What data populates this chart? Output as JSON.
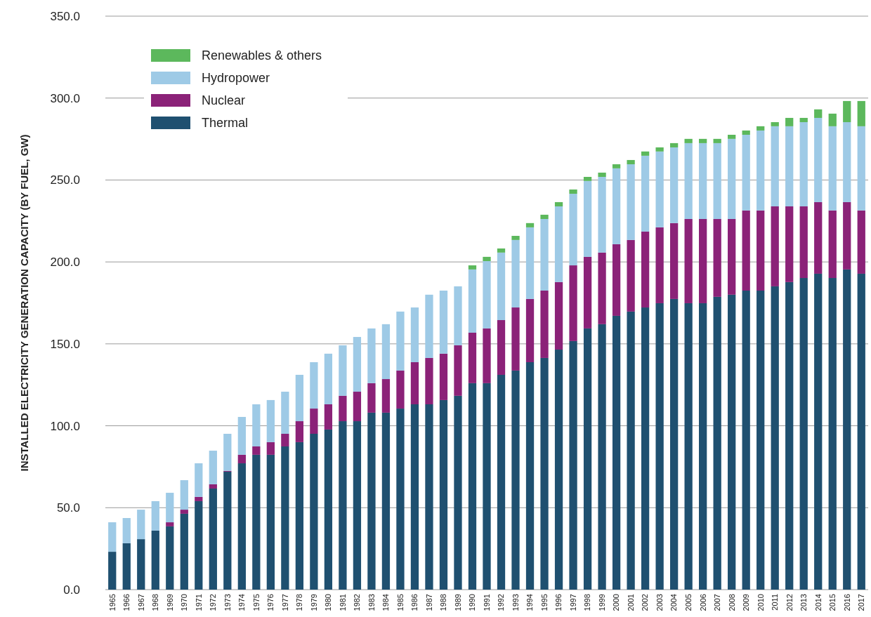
{
  "chart_data": {
    "type": "bar",
    "stacked": true,
    "ylabel": "INSTALLED ELECTRICITY GENERATION CAPACITY (BY FUEL, GW)",
    "categories": [
      "1965",
      "1966",
      "1967",
      "1968",
      "1969",
      "1970",
      "1971",
      "1972",
      "1973",
      "1974",
      "1975",
      "1976",
      "1977",
      "1978",
      "1979",
      "1980",
      "1981",
      "1982",
      "1983",
      "1984",
      "1985",
      "1986",
      "1987",
      "1988",
      "1989",
      "1990",
      "1991",
      "1992",
      "1993",
      "1994",
      "1995",
      "1996",
      "1997",
      "1998",
      "1999",
      "2000",
      "2001",
      "2002",
      "2003",
      "2004",
      "2005",
      "2006",
      "2007",
      "2008",
      "2009",
      "2010",
      "2011",
      "2012",
      "2013",
      "2014",
      "2015",
      "2016",
      "2017"
    ],
    "series": [
      {
        "name": "Thermal",
        "color": "#1f5070",
        "values": [
          23.1,
          28.3,
          30.8,
          36.0,
          38.6,
          46.3,
          54.0,
          61.7,
          72.0,
          77.1,
          82.3,
          82.3,
          87.4,
          90.0,
          95.1,
          97.7,
          102.8,
          102.8,
          108.0,
          108.0,
          110.5,
          113.1,
          113.1,
          115.7,
          118.3,
          126.0,
          126.0,
          131.1,
          133.7,
          138.8,
          141.4,
          146.5,
          151.7,
          159.4,
          162.0,
          167.1,
          169.7,
          172.2,
          174.8,
          177.4,
          174.8,
          174.8,
          178.7,
          180.0,
          182.5,
          182.5,
          185.1,
          187.7,
          190.2,
          192.8,
          190.2,
          195.4,
          192.8
        ]
      },
      {
        "name": "Nuclear",
        "color": "#8b2278",
        "values": [
          0,
          0,
          0,
          0,
          2.5,
          2.5,
          2.6,
          2.6,
          0.5,
          5.2,
          5.1,
          7.7,
          7.7,
          12.8,
          15.4,
          15.4,
          15.5,
          18.0,
          18.0,
          20.5,
          23.2,
          25.7,
          28.3,
          28.3,
          30.8,
          30.8,
          33.4,
          33.4,
          38.5,
          38.6,
          41.1,
          41.2,
          46.2,
          43.7,
          43.7,
          43.7,
          43.7,
          46.3,
          46.3,
          46.3,
          51.4,
          51.4,
          47.5,
          46.2,
          48.9,
          48.9,
          48.8,
          46.2,
          43.7,
          43.7,
          41.2,
          41.1,
          38.6
        ]
      },
      {
        "name": "Hydropower",
        "color": "#9ecae6",
        "values": [
          18.0,
          15.4,
          18.0,
          18.0,
          18.0,
          18.0,
          20.5,
          20.5,
          22.6,
          23.1,
          25.7,
          25.7,
          25.7,
          28.3,
          28.3,
          30.9,
          30.8,
          33.4,
          33.4,
          33.5,
          36.0,
          33.4,
          38.6,
          38.5,
          36.0,
          38.6,
          41.1,
          41.2,
          41.2,
          43.7,
          43.7,
          46.2,
          43.7,
          46.3,
          46.2,
          46.3,
          46.2,
          46.3,
          46.3,
          46.2,
          46.3,
          46.3,
          46.3,
          48.9,
          46.2,
          48.8,
          48.9,
          48.9,
          51.4,
          51.4,
          51.4,
          48.8,
          51.4
        ]
      },
      {
        "name": "Renewables & others",
        "color": "#5cb85c",
        "values": [
          0,
          0,
          0,
          0,
          0,
          0,
          0,
          0,
          0,
          0,
          0,
          0,
          0,
          0,
          0,
          0,
          0,
          0,
          0,
          0,
          0,
          0,
          0,
          0,
          0,
          2.5,
          2.6,
          2.5,
          2.5,
          2.6,
          2.6,
          2.6,
          2.6,
          2.5,
          2.6,
          2.5,
          2.6,
          2.6,
          2.5,
          2.6,
          2.6,
          2.6,
          2.6,
          2.5,
          2.6,
          2.6,
          2.5,
          5.1,
          2.6,
          5.2,
          7.7,
          12.9,
          15.4
        ]
      }
    ],
    "ylim": [
      0,
      350
    ],
    "yticks": [
      {
        "value": 0,
        "label": "0.0"
      },
      {
        "value": 50,
        "label": "50.0"
      },
      {
        "value": 100,
        "label": "100.0"
      },
      {
        "value": 150,
        "label": "150.0"
      },
      {
        "value": 200,
        "label": "200.0"
      },
      {
        "value": 250,
        "label": "250.0"
      },
      {
        "value": 300,
        "label": "300.0"
      },
      {
        "value": 350,
        "label": "350.0"
      }
    ],
    "grid": "y",
    "legend": "top left"
  }
}
